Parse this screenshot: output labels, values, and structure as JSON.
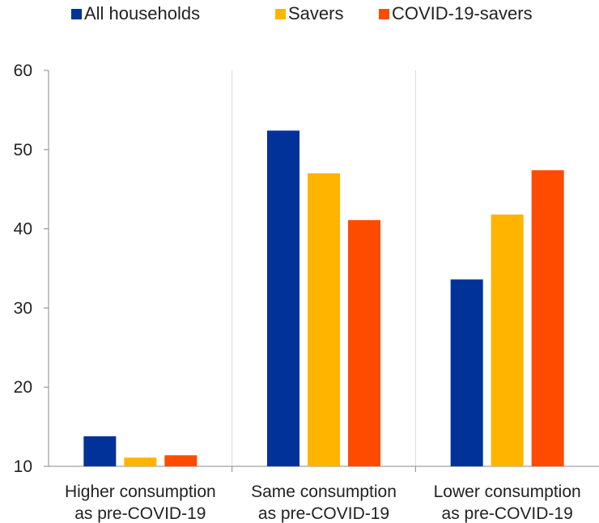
{
  "chart_data": {
    "type": "bar",
    "categories": [
      [
        "Higher consumption",
        "as pre-COVID-19"
      ],
      [
        "Same consumption",
        "as pre-COVID-19"
      ],
      [
        "Lower consumption",
        "as pre-COVID-19"
      ]
    ],
    "series": [
      {
        "name": "All households",
        "color": "#003299",
        "values": [
          13.8,
          52.4,
          33.6
        ]
      },
      {
        "name": "Savers",
        "color": "#FFB400",
        "values": [
          11.1,
          47.0,
          41.8
        ]
      },
      {
        "name": "COVID-19-savers",
        "color": "#FF4B00",
        "values": [
          11.4,
          41.1,
          47.4
        ]
      }
    ],
    "ylim": [
      10,
      60
    ],
    "yticks": [
      10,
      20,
      30,
      40,
      50,
      60
    ],
    "legend_position": "top",
    "grid": "vertical category separators"
  }
}
